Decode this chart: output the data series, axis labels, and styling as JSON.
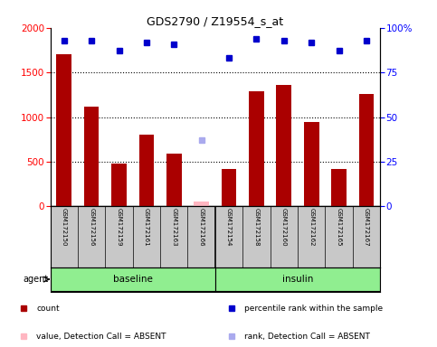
{
  "title": "GDS2790 / Z19554_s_at",
  "categories": [
    "GSM172150",
    "GSM172156",
    "GSM172159",
    "GSM172161",
    "GSM172163",
    "GSM172166",
    "GSM172154",
    "GSM172158",
    "GSM172160",
    "GSM172162",
    "GSM172165",
    "GSM172167"
  ],
  "count_values": [
    1700,
    1120,
    480,
    800,
    590,
    null,
    420,
    1290,
    1360,
    950,
    420,
    1260
  ],
  "count_absent": [
    null,
    null,
    null,
    null,
    null,
    60,
    null,
    null,
    null,
    null,
    null,
    null
  ],
  "percentile_values": [
    93,
    93,
    87,
    92,
    91,
    null,
    83,
    94,
    93,
    92,
    87,
    93
  ],
  "percentile_absent": [
    null,
    null,
    null,
    null,
    null,
    37,
    null,
    null,
    null,
    null,
    null,
    null
  ],
  "groups": [
    {
      "label": "baseline",
      "start": 0,
      "end": 5
    },
    {
      "label": "insulin",
      "start": 6,
      "end": 11
    }
  ],
  "ylim_left": [
    0,
    2000
  ],
  "ylim_right": [
    0,
    100
  ],
  "yticks_left": [
    0,
    500,
    1000,
    1500,
    2000
  ],
  "yticks_right": [
    0,
    25,
    50,
    75,
    100
  ],
  "bar_color": "#AA0000",
  "bar_absent_color": "#FFB6C1",
  "dot_color": "#0000CC",
  "dot_absent_color": "#AAAAEE",
  "background_label": "#C8C8C8",
  "group_color": "#90EE90",
  "group_split": 5.5,
  "agent_label": "agent",
  "legend_items": [
    {
      "color": "#AA0000",
      "label": "count"
    },
    {
      "color": "#0000CC",
      "label": "percentile rank within the sample"
    },
    {
      "color": "#FFB6C1",
      "label": "value, Detection Call = ABSENT"
    },
    {
      "color": "#AAAAEE",
      "label": "rank, Detection Call = ABSENT"
    }
  ]
}
